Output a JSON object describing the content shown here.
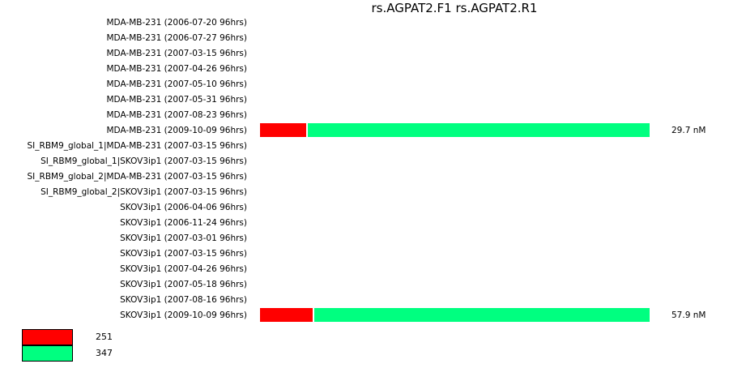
{
  "chart_data": {
    "type": "bar",
    "orientation": "horizontal",
    "stacked": true,
    "normalized": true,
    "title": "rs.AGPAT2.F1  rs.AGPAT2.R1",
    "categories": [
      "MDA-MB-231 (2006-07-20 96hrs)",
      "MDA-MB-231 (2006-07-27 96hrs)",
      "MDA-MB-231 (2007-03-15 96hrs)",
      "MDA-MB-231 (2007-04-26 96hrs)",
      "MDA-MB-231 (2007-05-10 96hrs)",
      "MDA-MB-231 (2007-05-31 96hrs)",
      "MDA-MB-231 (2007-08-23 96hrs)",
      "MDA-MB-231 (2009-10-09 96hrs)",
      "SI_RBM9_global_1|MDA-MB-231 (2007-03-15 96hrs)",
      "SI_RBM9_global_1|SKOV3ip1 (2007-03-15 96hrs)",
      "SI_RBM9_global_2|MDA-MB-231 (2007-03-15 96hrs)",
      "SI_RBM9_global_2|SKOV3ip1 (2007-03-15 96hrs)",
      "SKOV3ip1 (2006-04-06 96hrs)",
      "SKOV3ip1 (2006-11-24 96hrs)",
      "SKOV3ip1 (2007-03-01 96hrs)",
      "SKOV3ip1 (2007-03-15 96hrs)",
      "SKOV3ip1 (2007-04-26 96hrs)",
      "SKOV3ip1 (2007-05-18 96hrs)",
      "SKOV3ip1 (2007-08-16 96hrs)",
      "SKOV3ip1 (2009-10-09 96hrs)"
    ],
    "series": [
      {
        "name": "251",
        "color": "#ff0000",
        "values": [
          null,
          null,
          null,
          null,
          null,
          null,
          null,
          0.123,
          null,
          null,
          null,
          null,
          null,
          null,
          null,
          null,
          null,
          null,
          null,
          0.14
        ]
      },
      {
        "name": "347",
        "color": "#00ff80",
        "values": [
          null,
          null,
          null,
          null,
          null,
          null,
          null,
          0.877,
          null,
          null,
          null,
          null,
          null,
          null,
          null,
          null,
          null,
          null,
          null,
          0.86
        ]
      }
    ],
    "value_labels": [
      "",
      "",
      "",
      "",
      "",
      "",
      "",
      "29.7 nM",
      "",
      "",
      "",
      "",
      "",
      "",
      "",
      "",
      "",
      "",
      "",
      "57.9 nM"
    ],
    "legend": "bottom-left",
    "grid": false
  }
}
